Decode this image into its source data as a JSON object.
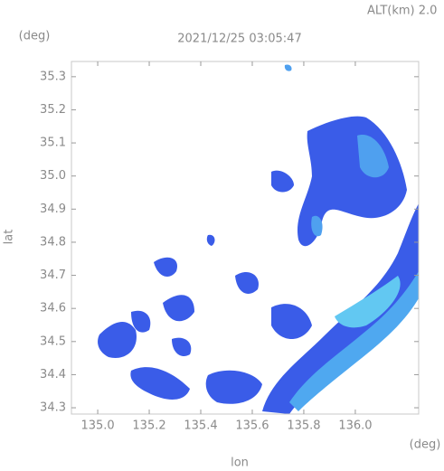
{
  "chart_data": {
    "type": "radar-map",
    "altitude_label": "ALT(km) 2.0",
    "title": "2021/12/25 03:05:47",
    "x_label": "lon",
    "y_label": "lat",
    "x_unit": "(deg)",
    "y_unit": "(deg)",
    "xlim": [
      134.898,
      136.246
    ],
    "ylim": [
      34.281,
      35.346
    ],
    "xticks": [
      {
        "value": 135,
        "label": "135.0"
      },
      {
        "value": 135.2,
        "label": "135.2"
      },
      {
        "value": 135.4,
        "label": "135.4"
      },
      {
        "value": 135.6,
        "label": "135.6"
      },
      {
        "value": 135.8,
        "label": "135.8"
      },
      {
        "value": 136,
        "label": "136.0"
      }
    ],
    "yticks": [
      {
        "value": 34.3,
        "label": "34.3"
      },
      {
        "value": 34.4,
        "label": "34.4"
      },
      {
        "value": 34.5,
        "label": "34.5"
      },
      {
        "value": 34.6,
        "label": "34.6"
      },
      {
        "value": 34.7,
        "label": "34.7"
      },
      {
        "value": 34.8,
        "label": "34.8"
      },
      {
        "value": 34.9,
        "label": "34.9"
      },
      {
        "value": 35,
        "label": "35.0"
      },
      {
        "value": 35.1,
        "label": "35.1"
      },
      {
        "value": 35.2,
        "label": "35.2"
      },
      {
        "value": 35.3,
        "label": "35.3"
      }
    ]
  }
}
